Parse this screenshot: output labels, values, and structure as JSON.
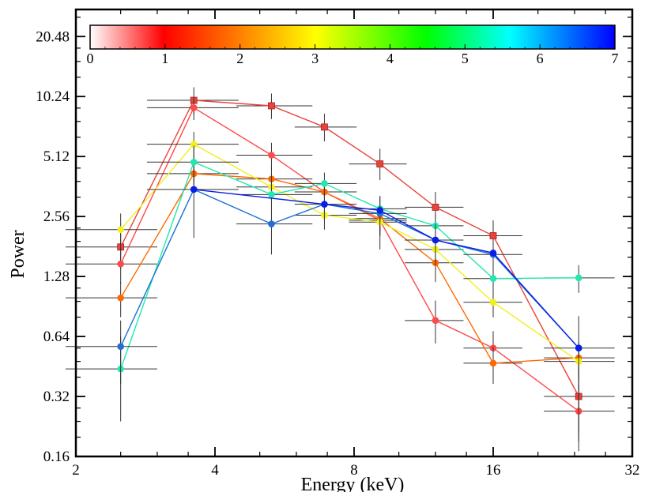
{
  "chart_data": {
    "type": "scatter",
    "xlabel": "Energy (keV)",
    "ylabel": "Power",
    "x_scale": "log2",
    "y_scale": "log2",
    "xlim": [
      2,
      32
    ],
    "ylim": [
      0.16,
      28
    ],
    "x_ticks": [
      2,
      4,
      8,
      16,
      32
    ],
    "x_tick_labels": [
      "2",
      "4",
      "8",
      "16",
      "32"
    ],
    "y_ticks": [
      0.16,
      0.32,
      0.64,
      1.28,
      2.56,
      5.12,
      10.24,
      20.48
    ],
    "y_tick_labels": [
      "0.16",
      "0.32",
      "0.64",
      "1.28",
      "2.56",
      "5.12",
      "10.24",
      "20.48"
    ],
    "colorbar": {
      "min": 0,
      "max": 7,
      "ticks": [
        "0",
        "1",
        "2",
        "3",
        "4",
        "5",
        "6",
        "7"
      ],
      "colormap": [
        "#ffffff",
        "#ff0000",
        "#ffff00",
        "#00ff00",
        "#00ffff",
        "#0000ff"
      ]
    },
    "series": [
      {
        "color": "#e8443c",
        "marker": "square",
        "x": [
          2.5,
          3.6,
          5.3,
          6.9,
          9.1,
          12.0,
          16.0,
          24.5
        ],
        "y": [
          1.8,
          9.8,
          9.2,
          7.2,
          4.7,
          2.85,
          2.05,
          0.32
        ],
        "xerr_lo": [
          0.6,
          0.75,
          0.85,
          0.95,
          1.3,
          1.7,
          2.2,
          3.9
        ],
        "xerr_hi": [
          0.5,
          0.9,
          1.2,
          1.2,
          1.3,
          1.8,
          2.5,
          4.8
        ],
        "yerr_lo": [
          0.4,
          1.5,
          1.3,
          1.1,
          0.8,
          0.5,
          0.35,
          0.15
        ],
        "yerr_hi": [
          0.3,
          1.6,
          1.4,
          1.2,
          0.9,
          0.55,
          0.4,
          0.12
        ]
      },
      {
        "color": "#ff4a4a",
        "marker": "circle",
        "x": [
          2.5,
          3.6,
          5.3,
          6.9,
          9.1,
          12.0,
          16.0,
          24.5
        ],
        "y": [
          1.48,
          9.0,
          5.2,
          3.4,
          2.45,
          0.77,
          0.56,
          0.27
        ],
        "xerr_lo": [
          0.6,
          0.75,
          0.85,
          0.95,
          1.3,
          1.7,
          2.2,
          3.9
        ],
        "xerr_hi": [
          0.5,
          0.9,
          1.2,
          1.2,
          1.3,
          1.8,
          2.5,
          4.8
        ],
        "yerr_lo": [
          0.3,
          1.2,
          0.8,
          0.5,
          0.4,
          0.18,
          0.12,
          0.08
        ],
        "yerr_hi": [
          0.3,
          1.2,
          0.8,
          0.5,
          0.4,
          0.2,
          0.12,
          0.1
        ]
      },
      {
        "color": "#ff6a00",
        "marker": "circle",
        "x": [
          2.5,
          3.6,
          5.3,
          6.9,
          9.1,
          12.0,
          16.0,
          24.5
        ],
        "y": [
          1.0,
          4.2,
          3.95,
          3.4,
          2.5,
          1.5,
          0.47,
          0.5
        ],
        "xerr_lo": [
          0.6,
          0.75,
          0.85,
          0.95,
          1.3,
          1.7,
          2.2,
          3.9
        ],
        "xerr_hi": [
          0.5,
          0.9,
          1.2,
          1.2,
          1.3,
          1.8,
          2.5,
          4.8
        ],
        "yerr_lo": [
          0.2,
          0.6,
          0.6,
          0.5,
          0.35,
          0.3,
          0.1,
          0.1
        ],
        "yerr_hi": [
          0.2,
          0.6,
          0.6,
          0.5,
          0.35,
          0.3,
          0.1,
          0.1
        ]
      },
      {
        "color": "#f0f020",
        "marker": "circle",
        "x": [
          2.5,
          3.6,
          5.3,
          6.9,
          9.1,
          12.0,
          16.0,
          24.5
        ],
        "y": [
          2.2,
          5.9,
          3.6,
          2.6,
          2.4,
          1.75,
          0.95,
          0.48
        ],
        "xerr_lo": [
          0.6,
          0.75,
          0.85,
          0.95,
          1.3,
          1.7,
          2.2,
          3.9
        ],
        "xerr_hi": [
          0.5,
          0.9,
          1.2,
          1.2,
          1.3,
          1.8,
          2.5,
          4.8
        ],
        "yerr_lo": [
          0.45,
          0.9,
          0.5,
          0.4,
          0.35,
          0.3,
          0.15,
          0.1
        ],
        "yerr_hi": [
          0.45,
          0.9,
          0.5,
          0.4,
          0.35,
          0.3,
          0.15,
          0.1
        ]
      },
      {
        "color": "#20e8b0",
        "marker": "circle",
        "x": [
          2.5,
          3.6,
          5.3,
          6.9,
          9.1,
          12.0,
          16.0,
          24.5
        ],
        "y": [
          0.44,
          4.8,
          3.3,
          3.75,
          2.8,
          2.3,
          1.25,
          1.26
        ],
        "xerr_lo": [
          0.6,
          0.75,
          0.85,
          0.95,
          1.3,
          1.7,
          2.2,
          3.9
        ],
        "xerr_hi": [
          0.5,
          0.9,
          1.2,
          1.2,
          1.3,
          1.8,
          2.5,
          4.8
        ],
        "yerr_lo": [
          0.2,
          1.0,
          0.5,
          0.5,
          0.4,
          0.35,
          0.2,
          0.2
        ],
        "yerr_hi": [
          0.2,
          1.0,
          0.5,
          0.5,
          0.4,
          0.35,
          0.2,
          0.2
        ]
      },
      {
        "color": "#1f6fd6",
        "marker": "circle",
        "x": [
          2.5,
          3.6,
          5.3,
          6.9,
          9.1,
          12.0,
          16.0,
          24.5
        ],
        "y": [
          0.57,
          3.5,
          2.35,
          2.95,
          2.65,
          1.95,
          1.65,
          0.56
        ],
        "xerr_lo": [
          0.6,
          0.75,
          0.85,
          0.95,
          1.3,
          1.7,
          2.2,
          3.9
        ],
        "xerr_hi": [
          0.5,
          0.9,
          1.2,
          1.2,
          1.3,
          1.8,
          2.5,
          4.8
        ],
        "yerr_lo": [
          0.2,
          1.5,
          0.7,
          0.5,
          0.9,
          0.4,
          0.3,
          0.35
        ],
        "yerr_hi": [
          0.2,
          1.0,
          0.5,
          0.5,
          0.6,
          0.4,
          0.3,
          0.25
        ]
      },
      {
        "color": "#0a1ee6",
        "marker": "circle",
        "x": [
          3.6,
          6.9,
          9.1,
          12.0,
          16.0,
          24.5
        ],
        "y": [
          3.5,
          2.95,
          2.75,
          1.95,
          1.68,
          0.56
        ],
        "xerr_lo": [
          0.0,
          0.0,
          0.0,
          0.0,
          0.0,
          0.0
        ],
        "xerr_hi": [
          0.0,
          0.0,
          0.0,
          0.0,
          0.0,
          0.0
        ],
        "yerr_lo": [
          0.0,
          0.0,
          0.0,
          0.0,
          0.0,
          0.0
        ],
        "yerr_hi": [
          0.0,
          0.0,
          0.0,
          0.0,
          0.0,
          0.0
        ]
      }
    ]
  }
}
